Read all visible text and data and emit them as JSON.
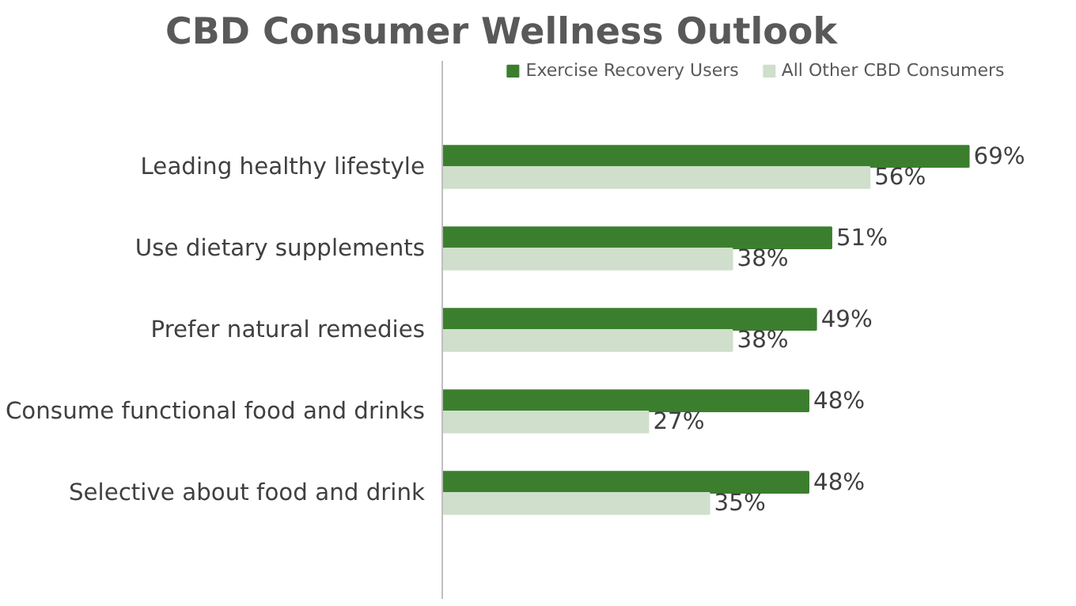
{
  "chart_data": {
    "type": "bar",
    "orientation": "horizontal",
    "title": "CBD Consumer Wellness Outlook",
    "categories": [
      "Leading healthy lifestyle",
      "Use dietary supplements",
      "Prefer natural remedies",
      "Consume functional food and drinks",
      "Selective about food and drink"
    ],
    "series": [
      {
        "name": "Exercise Recovery Users",
        "color": "#3b7f2e",
        "values": [
          69,
          51,
          49,
          48,
          48
        ],
        "value_labels": [
          "69%",
          "51%",
          "49%",
          "48%",
          "48%"
        ]
      },
      {
        "name": "All Other CBD Consumers",
        "color": "#cfdfcb",
        "values": [
          56,
          38,
          38,
          27,
          35
        ],
        "value_labels": [
          "56%",
          "38%",
          "38%",
          "27%",
          "35%"
        ]
      }
    ],
    "legend": "top",
    "grid": false
  }
}
